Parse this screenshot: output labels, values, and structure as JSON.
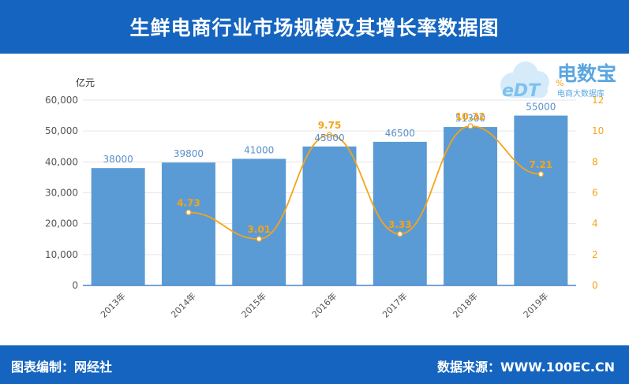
{
  "header": {
    "title": "生鲜电商行业市场规模及其增长率数据图"
  },
  "footer": {
    "left": "图表编制：网经社",
    "right": "数据来源：WWW.100EC.CN"
  },
  "logo": {
    "text_en": "eDT",
    "text_cn": "电数宝",
    "subtitle": "电商大数据库"
  },
  "colors": {
    "header_bg": "#1565c0",
    "bar": "#5b9bd5",
    "bar_label": "#5b8fc9",
    "line": "#f5a31a",
    "line_label": "#f5a31a",
    "axis_text": "#555555",
    "grid": "#e6e6e6"
  },
  "chart_data": {
    "type": "bar",
    "categories": [
      "2013年",
      "2014年",
      "2015年",
      "2016年",
      "2017年",
      "2018年",
      "2019年"
    ],
    "series": [
      {
        "kind": "bar",
        "axis": "left",
        "values": [
          38000,
          39800,
          41000,
          45000,
          46500,
          51300,
          55000
        ],
        "labels": [
          "38000",
          "39800",
          "41000",
          "45000",
          "46500",
          "51300",
          "55000"
        ]
      },
      {
        "kind": "line",
        "axis": "right",
        "smooth": true,
        "values": [
          null,
          4.73,
          3.01,
          9.75,
          3.33,
          10.32,
          7.21
        ],
        "labels": [
          "",
          "4.73",
          "3.01",
          "9.75",
          "3.33",
          "10.32",
          "7.21"
        ]
      }
    ],
    "y_left": {
      "label": "亿元",
      "range": [
        0,
        60000
      ],
      "ticks": [
        0,
        10000,
        20000,
        30000,
        40000,
        50000,
        60000
      ],
      "tick_labels": [
        "0",
        "10,000",
        "20,000",
        "30,000",
        "40,000",
        "50,000",
        "60,000"
      ]
    },
    "y_right": {
      "label": "%",
      "range": [
        0,
        12
      ],
      "ticks": [
        0,
        2,
        4,
        6,
        8,
        10,
        12
      ],
      "tick_labels": [
        "0",
        "2",
        "4",
        "6",
        "8",
        "10",
        "12"
      ]
    },
    "grid": true,
    "legend": "none"
  }
}
